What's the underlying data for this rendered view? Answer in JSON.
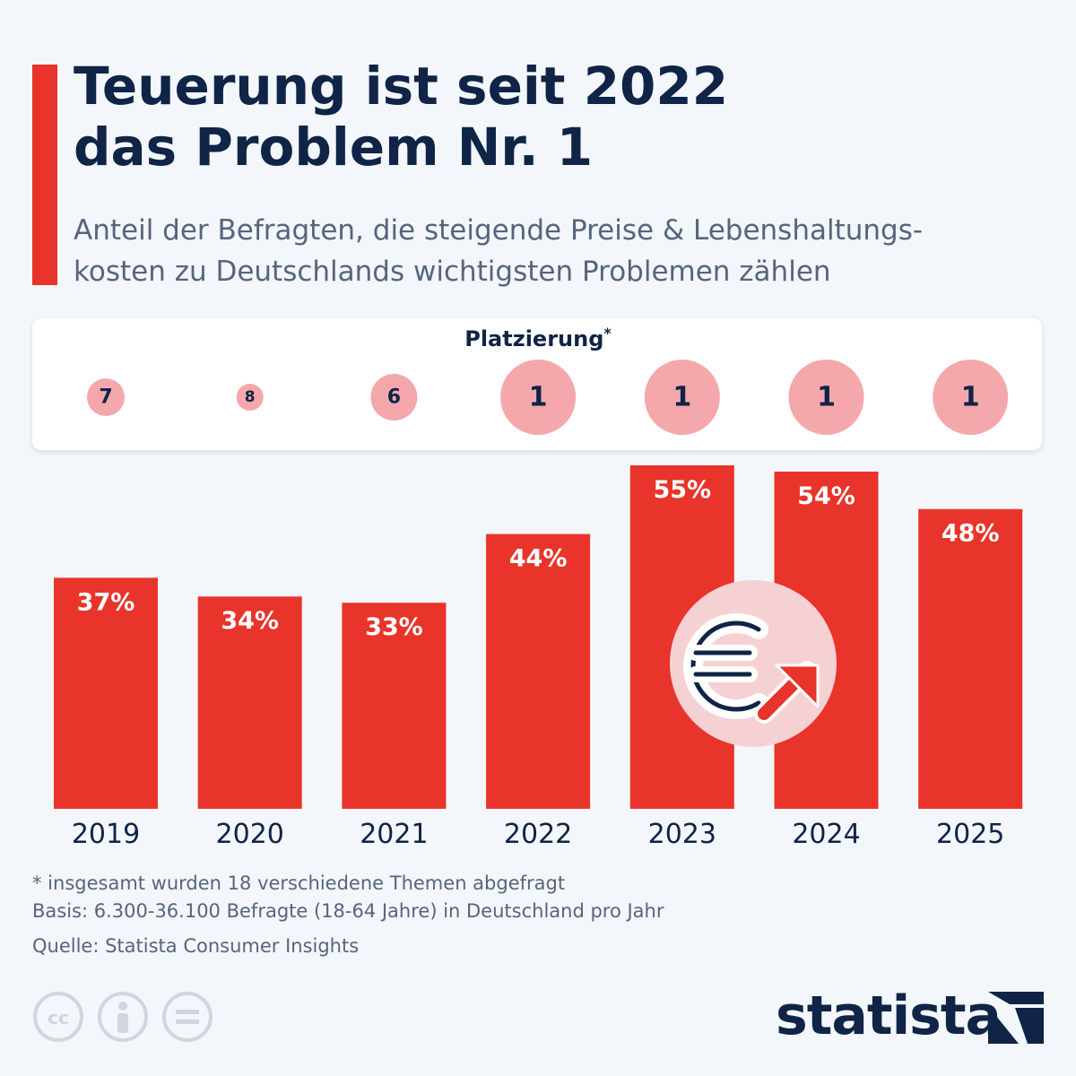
{
  "header": {
    "title_line1": "Teuerung ist seit 2022",
    "title_line2": "das Problem Nr. 1",
    "subtitle_line1": "Anteil der Befragten, die steigende Preise & Lebenshaltungs-",
    "subtitle_line2": "kosten zu Deutschlands wichtigsten Problemen zählen"
  },
  "ranking": {
    "heading": "Platzierung",
    "heading_mark": "*"
  },
  "chart_data": {
    "type": "bar",
    "categories": [
      "2019",
      "2020",
      "2021",
      "2022",
      "2023",
      "2024",
      "2025"
    ],
    "values": [
      37,
      34,
      33,
      44,
      55,
      54,
      48
    ],
    "value_labels": [
      "37%",
      "34%",
      "33%",
      "44%",
      "55%",
      "54%",
      "48%"
    ],
    "ranks": [
      7,
      8,
      6,
      1,
      1,
      1,
      1
    ],
    "ylim": [
      0,
      55
    ],
    "grid": false,
    "bar_color": "#e8342a",
    "rank_circle_color": "#f4a8ab",
    "icon": "euro-rising-arrow-icon"
  },
  "footer": {
    "note1": "* insgesamt wurden 18 verschiedene Themen abgefragt",
    "note2": "Basis: 6.300-36.100 Befragte (18-64 Jahre) in Deutschland pro Jahr",
    "source": "Quelle: Statista Consumer Insights",
    "brand": "statista",
    "license_icons": [
      "cc-icon",
      "attribution-icon",
      "no-derivatives-icon"
    ]
  }
}
